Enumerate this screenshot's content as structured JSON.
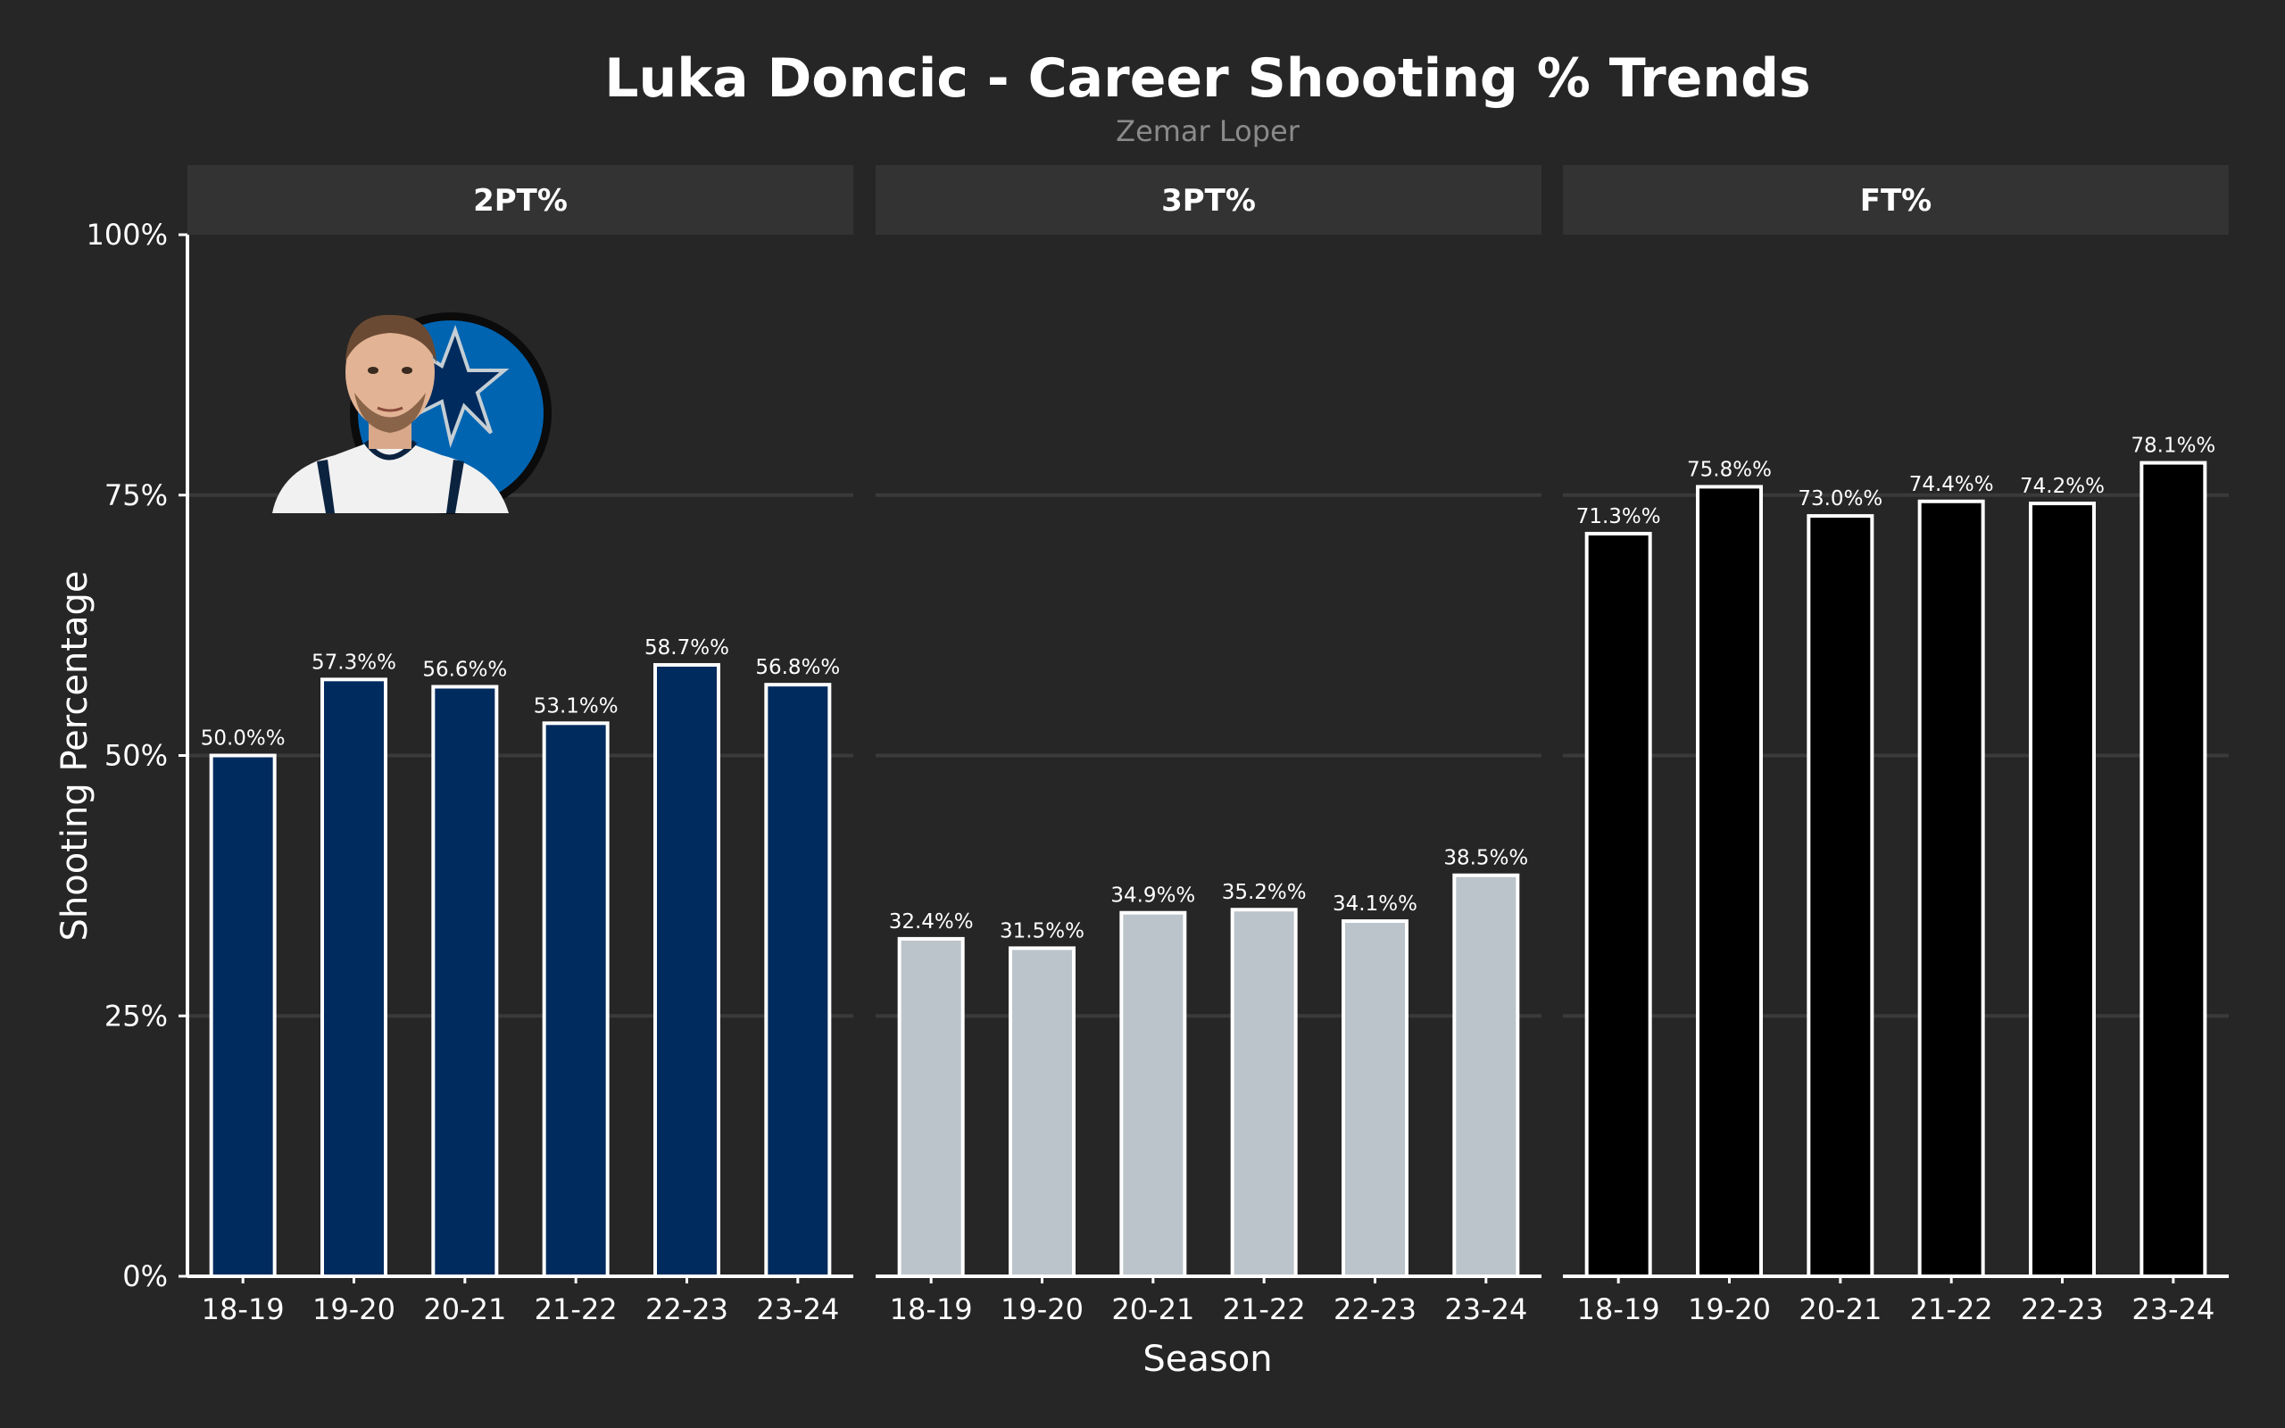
{
  "chart_data": {
    "type": "bar",
    "title": "Luka Doncic - Career Shooting % Trends",
    "subtitle": "Zemar Loper",
    "xlabel": "Season",
    "ylabel": "Shooting Percentage",
    "ylim": [
      0,
      100
    ],
    "yticks": [
      0,
      25,
      50,
      75,
      100
    ],
    "ytick_labels": [
      "0%",
      "25%",
      "50%",
      "75%",
      "100%"
    ],
    "grid": "horizontal",
    "legend": "none",
    "categories": [
      "18-19",
      "19-20",
      "20-21",
      "21-22",
      "22-23",
      "23-24"
    ],
    "panels": [
      {
        "name": "2PT%",
        "color": "#002B5E",
        "values": [
          50.0,
          57.3,
          56.6,
          53.1,
          58.7,
          56.8
        ],
        "labels": [
          "50.0%%",
          "57.3%%",
          "56.6%%",
          "53.1%%",
          "58.7%%",
          "56.8%%"
        ]
      },
      {
        "name": "3PT%",
        "color": "#BBC4CA",
        "values": [
          32.4,
          31.5,
          34.9,
          35.2,
          34.1,
          38.5
        ],
        "labels": [
          "32.4%%",
          "31.5%%",
          "34.9%%",
          "35.2%%",
          "34.1%%",
          "38.5%%"
        ]
      },
      {
        "name": "FT%",
        "color": "#000000",
        "values": [
          71.3,
          75.8,
          73.0,
          74.4,
          74.2,
          78.1
        ],
        "labels": [
          "71.3%%",
          "75.8%%",
          "73.0%%",
          "74.4%%",
          "74.2%%",
          "78.1%%"
        ]
      }
    ]
  },
  "colors": {
    "background": "#262626",
    "strip": "#333333",
    "grid": "#3a3a3a",
    "bar_outline": "#ffffff",
    "logo_blue": "#0064B1",
    "logo_navy": "#002B5E"
  },
  "image": {
    "description_icon": "player-headshot-with-team-logo"
  }
}
